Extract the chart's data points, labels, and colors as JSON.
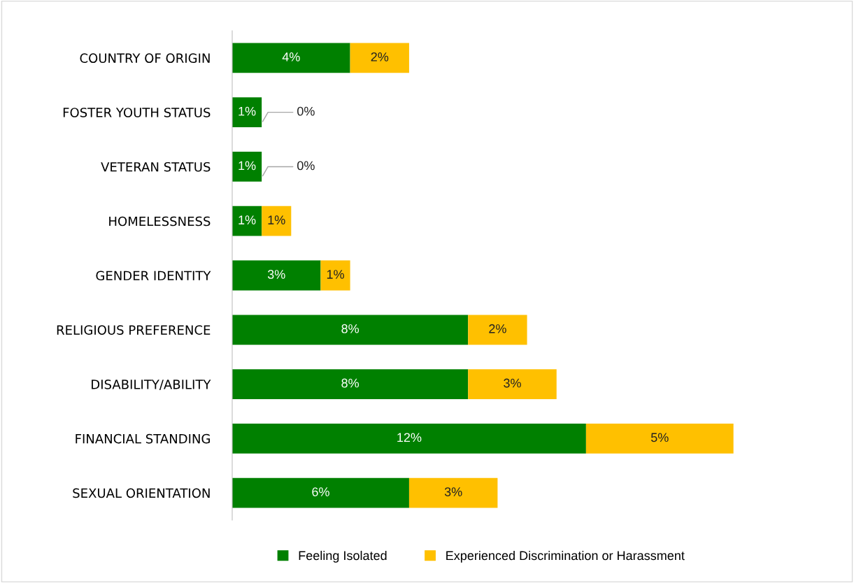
{
  "chart_data": {
    "type": "bar",
    "orientation": "horizontal",
    "stacked": true,
    "legend": "bottom",
    "grid": false,
    "categories": [
      "COUNTRY OF ORIGIN",
      "FOSTER YOUTH STATUS",
      "VETERAN STATUS",
      "HOMELESSNESS",
      "GENDER IDENTITY",
      "RELIGIOUS PREFERENCE",
      "DISABILITY/ABILITY",
      "FINANCIAL STANDING",
      "SEXUAL ORIENTATION"
    ],
    "series": [
      {
        "name": "Feeling Isolated",
        "color": "#008000",
        "values": [
          4,
          1,
          1,
          1,
          3,
          8,
          8,
          12,
          6
        ],
        "value_labels": [
          "4%",
          "1%",
          "1%",
          "1%",
          "3%",
          "8%",
          "8%",
          "12%",
          "6%"
        ]
      },
      {
        "name": "Experienced Discrimination or Harassment",
        "color": "#ffc000",
        "values": [
          2,
          0,
          0,
          1,
          1,
          2,
          3,
          5,
          3
        ],
        "value_labels": [
          "2%",
          "0%",
          "0%",
          "1%",
          "1%",
          "2%",
          "3%",
          "5%",
          "3%"
        ]
      }
    ]
  }
}
